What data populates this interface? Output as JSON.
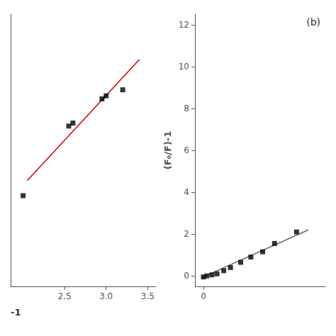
{
  "chart_data": [
    {
      "type": "scatter",
      "series": [
        {
          "type": "scatter",
          "marker": "square",
          "color": "black",
          "x": [
            2.0,
            2.55,
            2.6,
            2.95,
            3.0,
            3.2
          ],
          "values": [
            7.0,
            9.3,
            9.4,
            10.2,
            10.3,
            10.5
          ]
        },
        {
          "type": "line",
          "color": "#cc0000",
          "x": [
            2.05,
            3.4
          ],
          "values": [
            7.5,
            11.5
          ]
        }
      ],
      "xlim": [
        1.85,
        3.6
      ],
      "xticks": [
        2.5,
        {
          "value": 3.0,
          "label": "3.0"
        },
        3.5
      ],
      "ylim": [
        4.0,
        13.0
      ],
      "yticks": [],
      "annotation": "-1",
      "grid": false
    },
    {
      "type": "scatter",
      "series": [
        {
          "type": "scatter",
          "marker": "square",
          "color": "black",
          "x": [
            0.0,
            0.02,
            0.05,
            0.08,
            0.12,
            0.16,
            0.22,
            0.28,
            0.35,
            0.42,
            0.55
          ],
          "values": [
            -0.05,
            0.0,
            0.05,
            0.1,
            0.25,
            0.4,
            0.65,
            0.9,
            1.15,
            1.55,
            2.1
          ]
        },
        {
          "type": "line",
          "color": "#666666",
          "x": [
            -0.01,
            0.62
          ],
          "values": [
            -0.08,
            2.2
          ]
        }
      ],
      "xlim": [
        -0.05,
        0.72
      ],
      "xticks": [
        0
      ],
      "ylim": [
        -0.5,
        12.5
      ],
      "yticks": [
        0,
        2,
        4,
        6,
        8,
        10,
        12
      ],
      "ylabel": "(F₀/F)-1",
      "annotation": "(b)",
      "grid": false
    }
  ]
}
